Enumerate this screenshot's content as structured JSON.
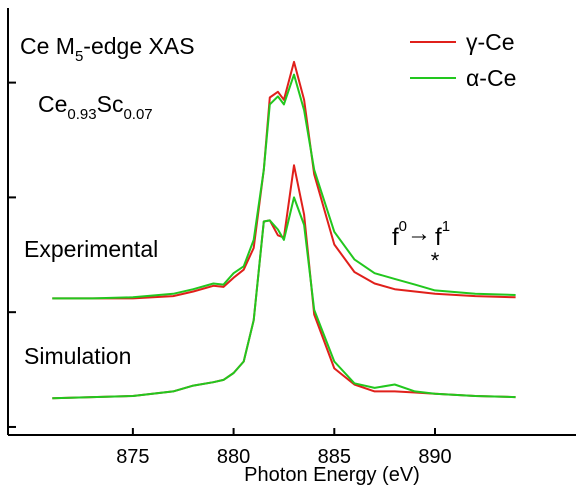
{
  "chart_data": {
    "type": "line",
    "title_parts": [
      "Ce M",
      "5",
      "-edge XAS"
    ],
    "sample_parts": [
      "Ce",
      "0.93",
      "Sc",
      "0.07"
    ],
    "annotations": [
      "Experimental",
      "Simulation"
    ],
    "transition_parts": [
      "f",
      "0",
      "→",
      "f",
      "1",
      "*"
    ],
    "xlabel": "Photon Energy (eV)",
    "x": [
      871,
      873,
      875,
      877,
      878,
      879,
      879.5,
      880,
      880.5,
      881,
      881.5,
      881.8,
      882.2,
      882.5,
      883,
      883.5,
      884,
      885,
      886,
      887,
      888,
      889,
      890,
      892,
      894
    ],
    "series": [
      {
        "name": "γ-Ce",
        "color": "#e0201b",
        "experimental": [
          1.12,
          1.12,
          1.12,
          1.14,
          1.18,
          1.23,
          1.22,
          1.3,
          1.37,
          1.56,
          2.24,
          2.87,
          2.92,
          2.85,
          3.18,
          2.85,
          2.2,
          1.59,
          1.35,
          1.25,
          1.2,
          1.18,
          1.16,
          1.14,
          1.13
        ],
        "simulation": [
          0.25,
          0.26,
          0.27,
          0.31,
          0.36,
          0.39,
          0.41,
          0.47,
          0.57,
          0.93,
          1.79,
          1.8,
          1.67,
          1.65,
          2.28,
          1.85,
          0.98,
          0.51,
          0.37,
          0.31,
          0.31,
          0.3,
          0.29,
          0.27,
          0.26
        ]
      },
      {
        "name": "α-Ce",
        "color": "#22c71e",
        "experimental": [
          1.12,
          1.12,
          1.13,
          1.16,
          1.2,
          1.25,
          1.24,
          1.34,
          1.4,
          1.63,
          2.24,
          2.81,
          2.88,
          2.81,
          3.07,
          2.76,
          2.24,
          1.7,
          1.46,
          1.34,
          1.29,
          1.24,
          1.19,
          1.16,
          1.15
        ],
        "simulation": [
          0.25,
          0.26,
          0.27,
          0.31,
          0.36,
          0.39,
          0.41,
          0.47,
          0.57,
          0.93,
          1.79,
          1.8,
          1.72,
          1.63,
          2.0,
          1.76,
          1.02,
          0.57,
          0.38,
          0.34,
          0.37,
          0.31,
          0.29,
          0.27,
          0.26
        ]
      }
    ],
    "xlim": [
      868.8,
      897.0
    ],
    "xticks": [
      875,
      880,
      885,
      890
    ],
    "ylim": [
      -0.07,
      3.65
    ],
    "yticks": [
      0,
      1,
      2,
      3
    ]
  }
}
